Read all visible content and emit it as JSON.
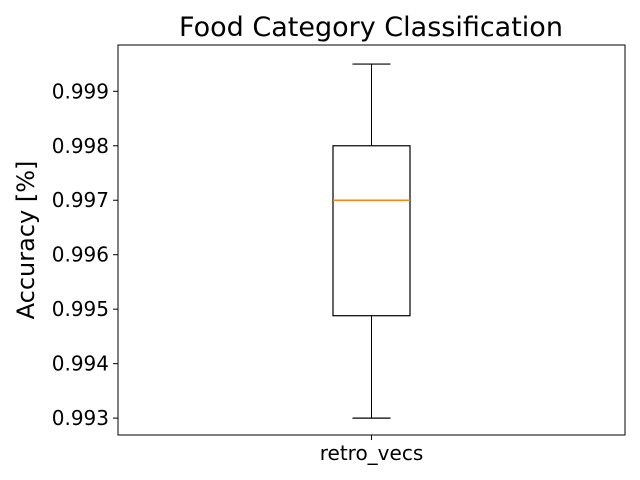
{
  "chart_data": {
    "type": "box",
    "title": "Food Category Classification",
    "xlabel": "",
    "ylabel": "Accuracy [%]",
    "categories": [
      "retro_vecs"
    ],
    "yticks": [
      "0.993",
      "0.994",
      "0.995",
      "0.996",
      "0.997",
      "0.998",
      "0.999"
    ],
    "ylim": [
      0.99269,
      0.99985
    ],
    "grid": false,
    "series": [
      {
        "values": [
          {
            "whisker_low": 0.993,
            "q1": 0.99488,
            "median": 0.997,
            "q3": 0.998,
            "whisker_high": 0.9995
          }
        ]
      }
    ],
    "colors": {
      "box": "#000000",
      "median": "#ff7f0e",
      "axes": "#000000"
    }
  }
}
